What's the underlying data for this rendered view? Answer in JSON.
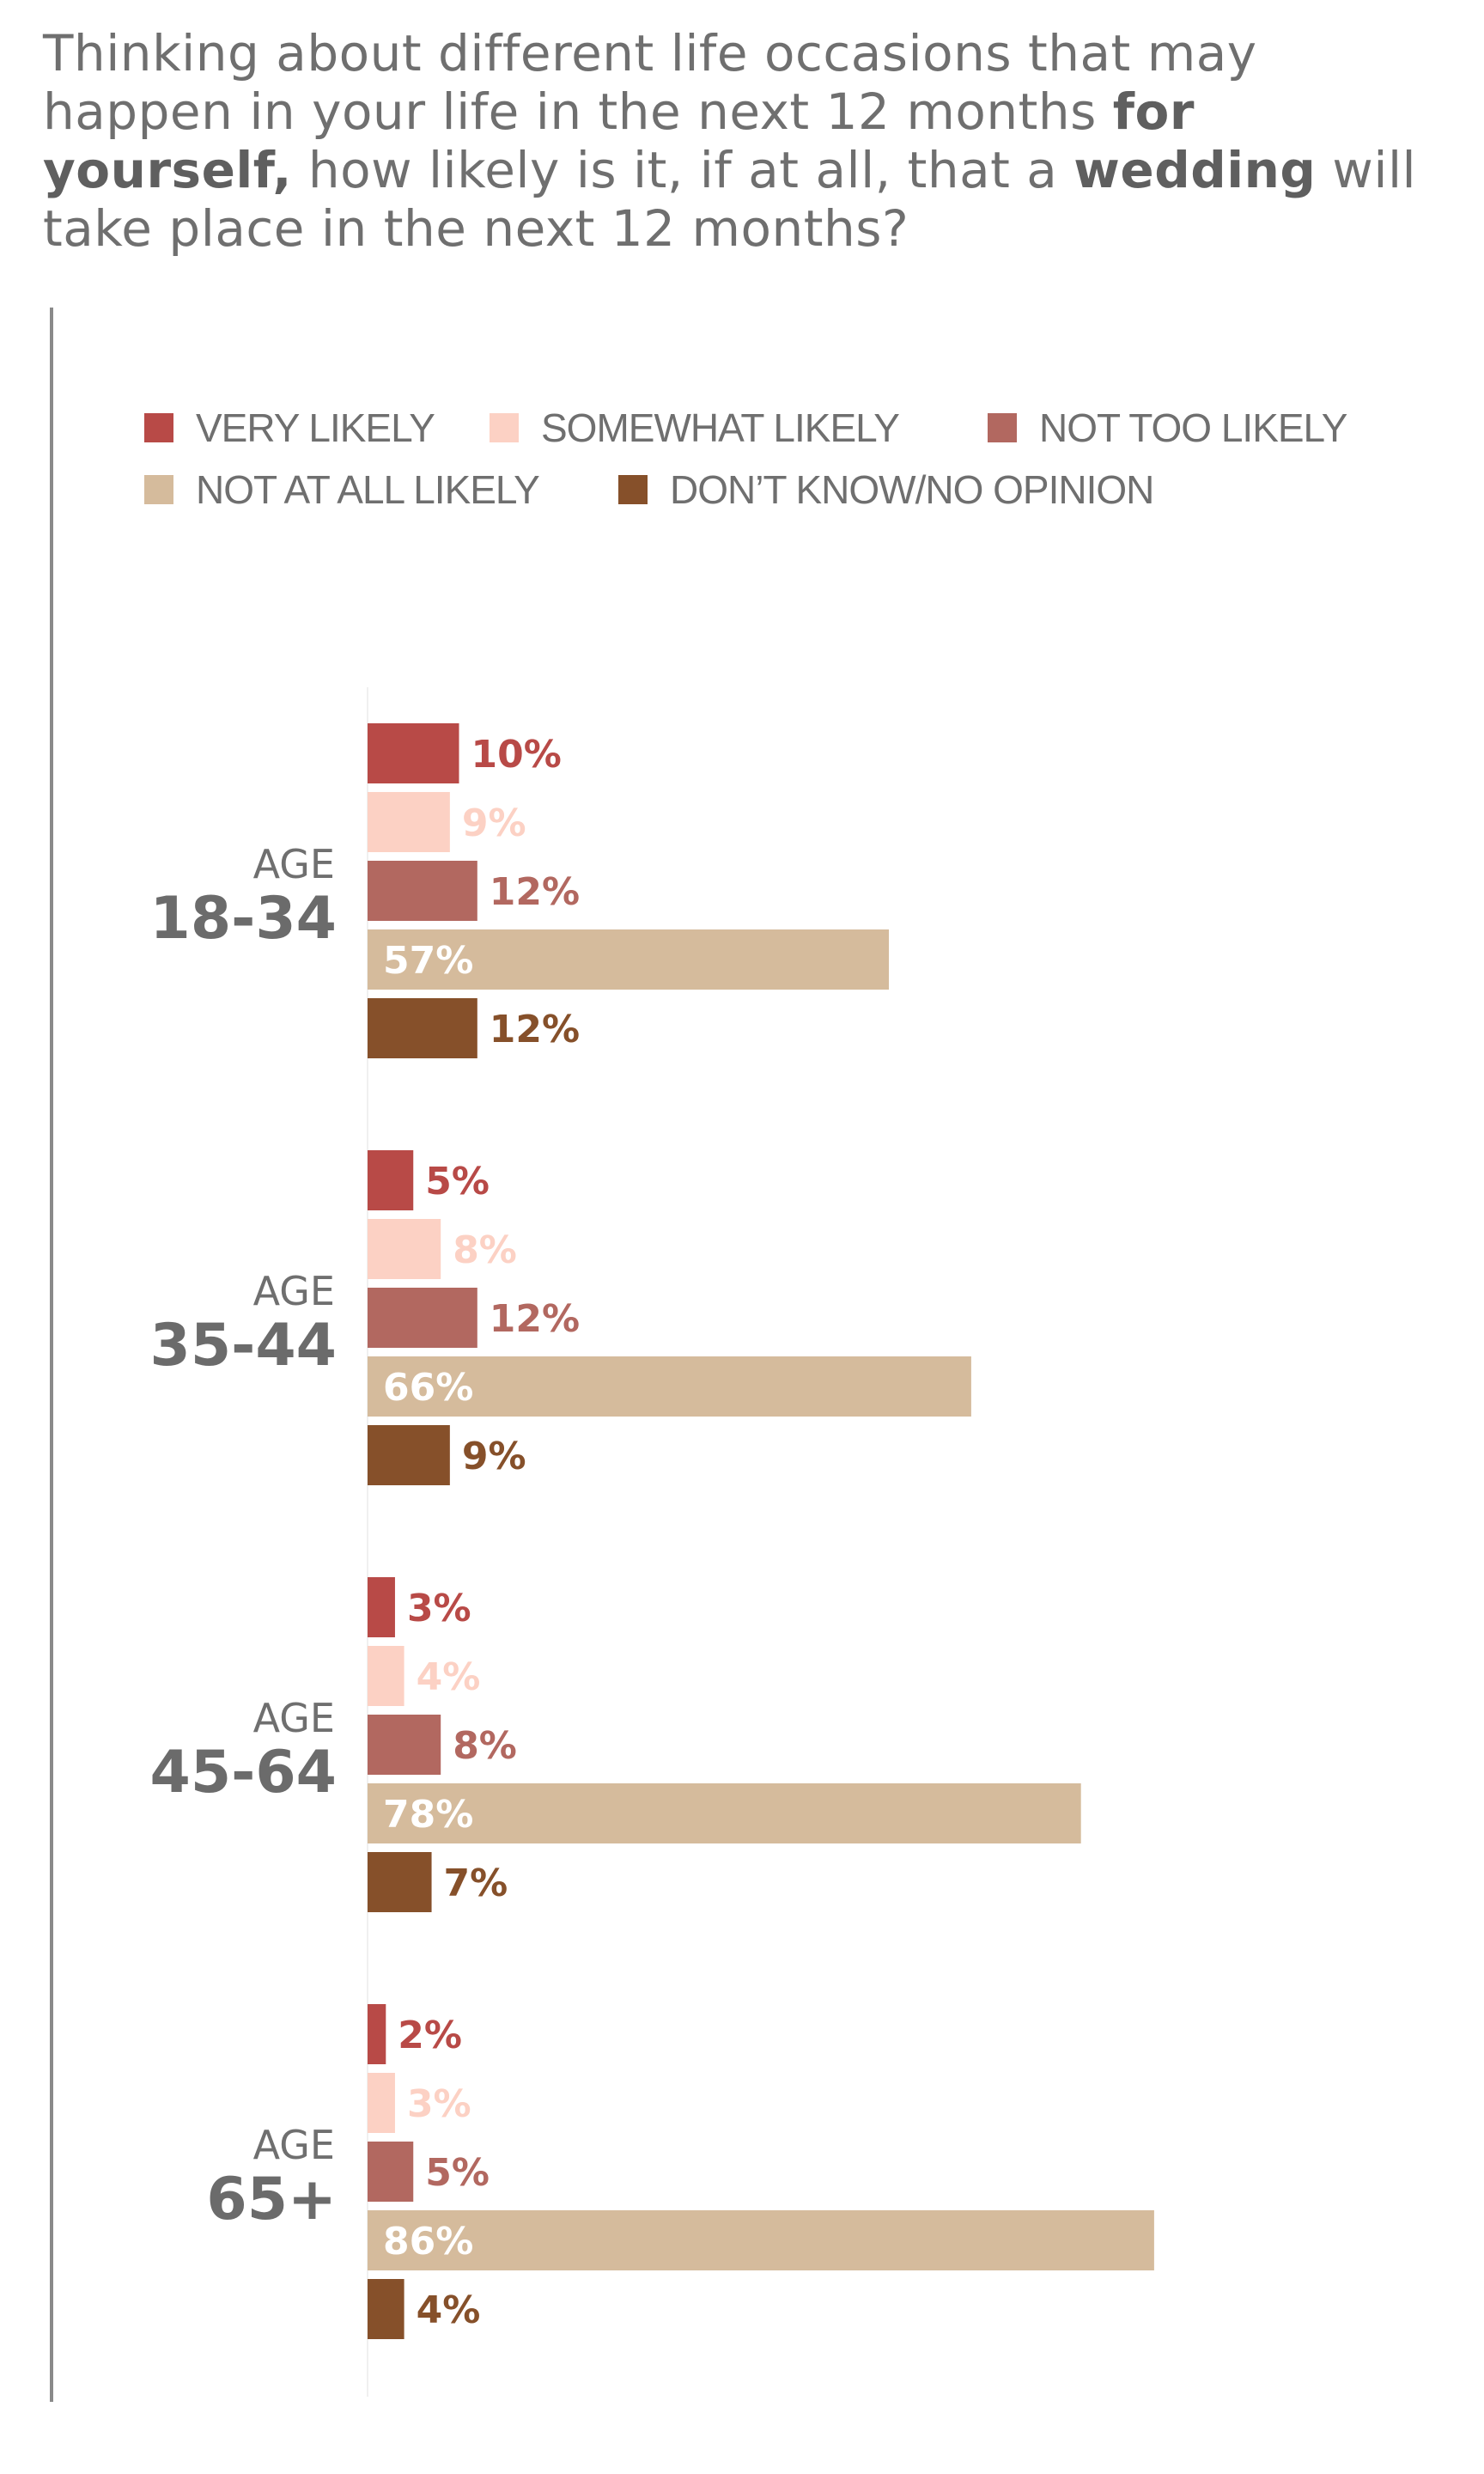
{
  "title": {
    "part1": "Thinking about different life occasions that may happen in your life in the next 12 months ",
    "bold1": "for yourself,",
    "part2": " how likely is it, if at all, that a ",
    "bold2": "wedding",
    "part3": " will take place in the next 12 months?"
  },
  "chart_data": {
    "type": "bar",
    "orientation": "horizontal",
    "xlim": [
      0,
      100
    ],
    "grid": false,
    "legend_position": "top",
    "series": [
      {
        "name": "VERY LIKELY",
        "color": "#b84a47",
        "label_color": "#b84a47",
        "values": [
          10,
          5,
          3,
          2
        ]
      },
      {
        "name": "SOMEWHAT LIKELY",
        "color": "#fcd1c4",
        "label_color": "#fcd1c4",
        "values": [
          9,
          8,
          4,
          3
        ]
      },
      {
        "name": "NOT TOO LIKELY",
        "color": "#b26860",
        "label_color": "#b26860",
        "values": [
          12,
          12,
          8,
          5
        ]
      },
      {
        "name": "NOT AT ALL LIKELY",
        "color": "#d5bb9c",
        "label_color": "#ffffff",
        "values": [
          57,
          66,
          78,
          86
        ]
      },
      {
        "name": "DON’T KNOW/NO OPINION",
        "color": "#86502a",
        "label_color": "#86502a",
        "values": [
          12,
          9,
          7,
          4
        ]
      }
    ],
    "groups": [
      {
        "prefix": "AGE",
        "range": "18-34"
      },
      {
        "prefix": "AGE",
        "range": "35-44"
      },
      {
        "prefix": "AGE",
        "range": "45-64"
      },
      {
        "prefix": "AGE",
        "range": "65+"
      }
    ],
    "value_suffix": "%"
  }
}
